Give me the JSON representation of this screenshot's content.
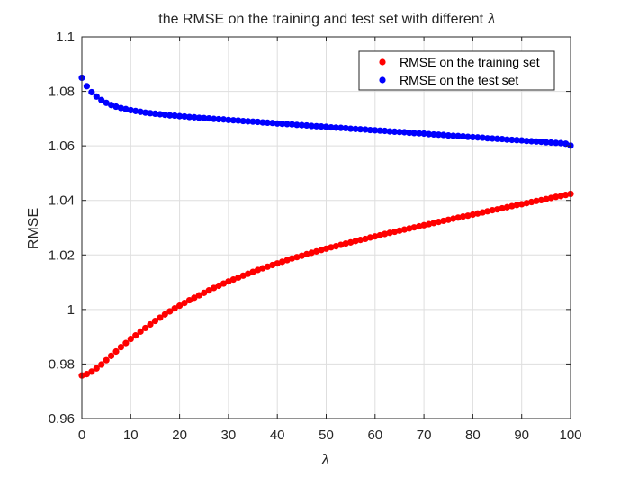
{
  "chart_data": {
    "type": "scatter",
    "title": "the RMSE on the training and test set with different ",
    "title_symbol": "λ",
    "xlabel": "λ",
    "ylabel": "RMSE",
    "xlim": [
      0,
      100
    ],
    "ylim": [
      0.96,
      1.1
    ],
    "xticks": [
      0,
      10,
      20,
      30,
      40,
      50,
      60,
      70,
      80,
      90,
      100
    ],
    "xtick_labels": [
      "0",
      "10",
      "20",
      "30",
      "40",
      "50",
      "60",
      "70",
      "80",
      "90",
      "100"
    ],
    "yticks": [
      0.96,
      0.98,
      1.0,
      1.02,
      1.04,
      1.06,
      1.08,
      1.1
    ],
    "ytick_labels": [
      "0.96",
      "0.98",
      "1",
      "1.02",
      "1.04",
      "1.06",
      "1.08",
      "1.1"
    ],
    "grid": true,
    "legend_position": "top-right",
    "series": [
      {
        "name": "RMSE on the training set",
        "color": "#ff0000",
        "x": [
          0,
          1,
          2,
          3,
          4,
          5,
          6,
          7,
          8,
          9,
          10,
          11,
          12,
          13,
          14,
          15,
          16,
          17,
          18,
          19,
          20,
          21,
          22,
          23,
          24,
          25,
          26,
          27,
          28,
          29,
          30,
          31,
          32,
          33,
          34,
          35,
          36,
          37,
          38,
          39,
          40,
          41,
          42,
          43,
          44,
          45,
          46,
          47,
          48,
          49,
          50,
          51,
          52,
          53,
          54,
          55,
          56,
          57,
          58,
          59,
          60,
          61,
          62,
          63,
          64,
          65,
          66,
          67,
          68,
          69,
          70,
          71,
          72,
          73,
          74,
          75,
          76,
          77,
          78,
          79,
          80,
          81,
          82,
          83,
          84,
          85,
          86,
          87,
          88,
          89,
          90,
          91,
          92,
          93,
          94,
          95,
          96,
          97,
          98,
          99,
          100
        ],
        "values": [
          0.9758,
          0.9763,
          0.9772,
          0.9784,
          0.9798,
          0.9814,
          0.983,
          0.9846,
          0.9862,
          0.9877,
          0.9892,
          0.9905,
          0.9919,
          0.9932,
          0.9945,
          0.9958,
          0.997,
          0.9982,
          0.9993,
          1.0004,
          1.0014,
          1.0024,
          1.0034,
          1.0043,
          1.0052,
          1.0061,
          1.007,
          1.0079,
          1.0087,
          1.0095,
          1.0103,
          1.011,
          1.0117,
          1.0124,
          1.0131,
          1.0138,
          1.0145,
          1.0151,
          1.0157,
          1.0163,
          1.0169,
          1.0175,
          1.0181,
          1.0187,
          1.0192,
          1.0197,
          1.0203,
          1.0208,
          1.0213,
          1.0218,
          1.0223,
          1.0228,
          1.0232,
          1.0237,
          1.0242,
          1.0246,
          1.0251,
          1.0255,
          1.0259,
          1.0264,
          1.0268,
          1.0272,
          1.0277,
          1.0281,
          1.0285,
          1.0289,
          1.0293,
          1.0297,
          1.0301,
          1.0305,
          1.0309,
          1.0313,
          1.0317,
          1.0321,
          1.0325,
          1.0329,
          1.0333,
          1.0337,
          1.0341,
          1.0344,
          1.0348,
          1.0352,
          1.0356,
          1.036,
          1.0364,
          1.0367,
          1.0371,
          1.0375,
          1.0379,
          1.0383,
          1.0386,
          1.039,
          1.0394,
          1.0398,
          1.0401,
          1.0405,
          1.0409,
          1.0413,
          1.0416,
          1.042,
          1.0424
        ]
      },
      {
        "name": "RMSE on the test set",
        "color": "#0000ff",
        "x": [
          0,
          1,
          2,
          3,
          4,
          5,
          6,
          7,
          8,
          9,
          10,
          11,
          12,
          13,
          14,
          15,
          16,
          17,
          18,
          19,
          20,
          21,
          22,
          23,
          24,
          25,
          26,
          27,
          28,
          29,
          30,
          31,
          32,
          33,
          34,
          35,
          36,
          37,
          38,
          39,
          40,
          41,
          42,
          43,
          44,
          45,
          46,
          47,
          48,
          49,
          50,
          51,
          52,
          53,
          54,
          55,
          56,
          57,
          58,
          59,
          60,
          61,
          62,
          63,
          64,
          65,
          66,
          67,
          68,
          69,
          70,
          71,
          72,
          73,
          74,
          75,
          76,
          77,
          78,
          79,
          80,
          81,
          82,
          83,
          84,
          85,
          86,
          87,
          88,
          89,
          90,
          91,
          92,
          93,
          94,
          95,
          96,
          97,
          98,
          99,
          100
        ],
        "values": [
          1.085,
          1.0819,
          1.0797,
          1.0781,
          1.0768,
          1.0758,
          1.075,
          1.0744,
          1.0739,
          1.0735,
          1.0731,
          1.0728,
          1.0725,
          1.0722,
          1.072,
          1.0718,
          1.0716,
          1.0714,
          1.0712,
          1.0711,
          1.0709,
          1.0708,
          1.0706,
          1.0705,
          1.0703,
          1.0702,
          1.0701,
          1.0699,
          1.0698,
          1.0697,
          1.0695,
          1.0694,
          1.0693,
          1.0691,
          1.069,
          1.0689,
          1.0688,
          1.0686,
          1.0685,
          1.0684,
          1.0682,
          1.0681,
          1.068,
          1.0679,
          1.0677,
          1.0676,
          1.0675,
          1.0673,
          1.0672,
          1.0671,
          1.067,
          1.0668,
          1.0667,
          1.0666,
          1.0665,
          1.0663,
          1.0662,
          1.0661,
          1.066,
          1.0658,
          1.0657,
          1.0656,
          1.0655,
          1.0653,
          1.0652,
          1.0651,
          1.065,
          1.0648,
          1.0647,
          1.0646,
          1.0645,
          1.0643,
          1.0642,
          1.0641,
          1.064,
          1.0638,
          1.0637,
          1.0636,
          1.0635,
          1.0633,
          1.0632,
          1.0631,
          1.063,
          1.0628,
          1.0627,
          1.0626,
          1.0625,
          1.0623,
          1.0622,
          1.0621,
          1.062,
          1.0618,
          1.0617,
          1.0616,
          1.0615,
          1.0613,
          1.0612,
          1.0611,
          1.061,
          1.0608,
          1.0601
        ]
      }
    ]
  }
}
